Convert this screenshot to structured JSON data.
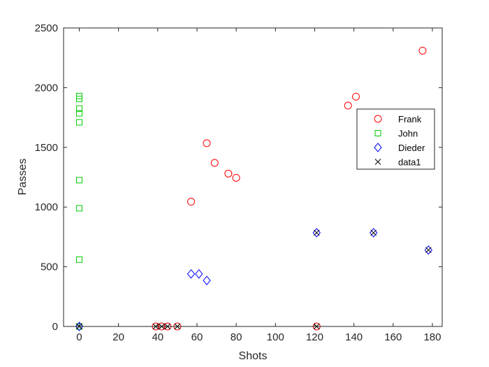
{
  "chart_data": {
    "type": "scatter",
    "xlabel": "Shots",
    "ylabel": "Passes",
    "xlim": [
      -8,
      185
    ],
    "ylim": [
      0,
      2500
    ],
    "x_ticks": [
      0,
      20,
      40,
      60,
      80,
      100,
      120,
      140,
      160,
      180
    ],
    "y_ticks": [
      0,
      500,
      1000,
      1500,
      2000,
      2500
    ],
    "x_tick_labels": [
      "0",
      "20",
      "40",
      "60",
      "80",
      "100",
      "120",
      "140",
      "160",
      "180"
    ],
    "y_tick_labels": [
      "0",
      "500",
      "1000",
      "1500",
      "2000",
      "2500"
    ],
    "grid": false,
    "legend_position": "right",
    "series": [
      {
        "name": "Frank",
        "marker": "circle",
        "color": "#ff0000",
        "points": [
          [
            57,
            1045
          ],
          [
            65,
            1535
          ],
          [
            69,
            1370
          ],
          [
            76,
            1280
          ],
          [
            80,
            1245
          ],
          [
            137,
            1850
          ],
          [
            141,
            1925
          ],
          [
            175,
            2310
          ],
          [
            39,
            0
          ],
          [
            42,
            0
          ],
          [
            45,
            0
          ],
          [
            50,
            0
          ],
          [
            121,
            0
          ]
        ]
      },
      {
        "name": "John",
        "marker": "square",
        "color": "#00cc00",
        "points": [
          [
            0,
            1930
          ],
          [
            0,
            1905
          ],
          [
            0,
            1825
          ],
          [
            0,
            1785
          ],
          [
            0,
            1710
          ],
          [
            0,
            1225
          ],
          [
            0,
            990
          ],
          [
            0,
            560
          ],
          [
            0,
            0
          ]
        ]
      },
      {
        "name": "Dieder",
        "marker": "diamond",
        "color": "#0000ff",
        "points": [
          [
            57,
            440
          ],
          [
            61,
            440
          ],
          [
            65,
            385
          ],
          [
            121,
            785
          ],
          [
            150,
            785
          ],
          [
            178,
            640
          ],
          [
            0,
            0
          ]
        ]
      },
      {
        "name": "data1",
        "marker": "x",
        "color": "#000000",
        "points": [
          [
            39,
            0
          ],
          [
            42,
            0
          ],
          [
            45,
            0
          ],
          [
            50,
            0
          ],
          [
            121,
            0
          ],
          [
            0,
            0
          ],
          [
            121,
            785
          ],
          [
            150,
            785
          ],
          [
            178,
            640
          ]
        ]
      }
    ]
  }
}
